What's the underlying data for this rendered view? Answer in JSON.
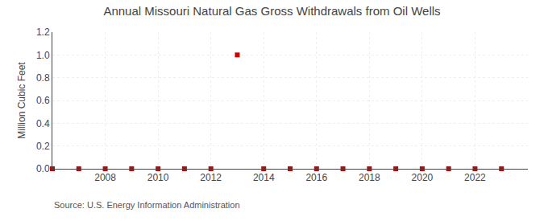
{
  "chart_data": {
    "type": "scatter",
    "title": "Annual Missouri Natural Gas Gross Withdrawals from Oil Wells",
    "ylabel": "Million Cubic Feet",
    "annotations": [
      "Source: U.S. Energy Information Administration"
    ],
    "x": [
      2006,
      2007,
      2008,
      2009,
      2010,
      2011,
      2012,
      2013,
      2014,
      2015,
      2016,
      2017,
      2018,
      2019,
      2020,
      2021,
      2022,
      2023
    ],
    "values": [
      0,
      0,
      0,
      0,
      0,
      0,
      0,
      1.0,
      0,
      0,
      0,
      0,
      0,
      0,
      0,
      0,
      0,
      0
    ],
    "color": "#cc0000",
    "marker": "square",
    "xlim": [
      2006,
      2024
    ],
    "xticks": [
      2008,
      2010,
      2012,
      2014,
      2016,
      2018,
      2020,
      2022
    ],
    "ylim": [
      0,
      1.2
    ],
    "yticks": [
      {
        "value": 0,
        "label": "0.0"
      },
      0.2,
      0.4,
      0.6,
      0.8,
      {
        "value": 1,
        "label": "1.0"
      },
      1.2
    ],
    "grid": true
  }
}
